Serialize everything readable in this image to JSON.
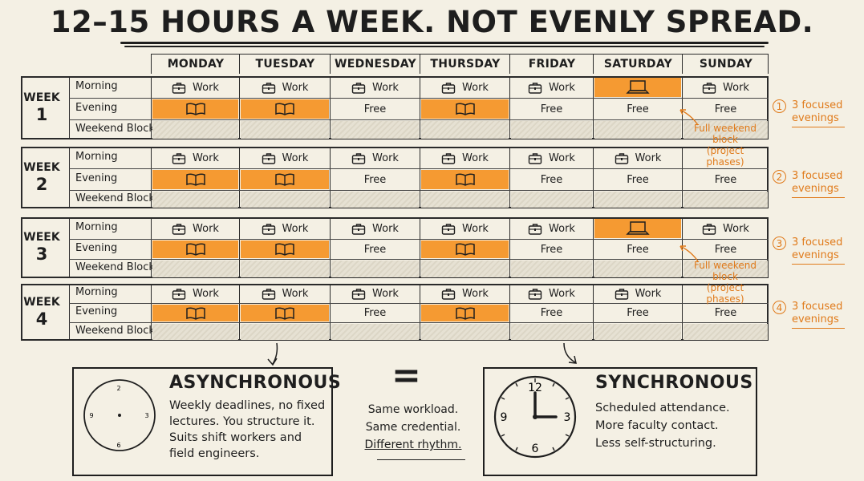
{
  "title": "12–15 HOURS A WEEK. NOT EVENLY SPREAD.",
  "days": [
    "MONDAY",
    "TUESDAY",
    "WEDNESDAY",
    "THURSDAY",
    "FRIDAY",
    "SATURDAY",
    "SUNDAY"
  ],
  "row_labels": [
    "Morning",
    "Evening",
    "Weekend Block"
  ],
  "week_word": "WEEK",
  "weeks": [
    {
      "number": "1",
      "morning": [
        {
          "icon": "briefcase",
          "text": "Work"
        },
        {
          "icon": "briefcase",
          "text": "Work"
        },
        {
          "icon": "briefcase",
          "text": "Work"
        },
        {
          "icon": "briefcase",
          "text": "Work"
        },
        {
          "icon": "briefcase",
          "text": "Work"
        },
        {
          "icon": "laptop",
          "text": "",
          "hl": true
        },
        {
          "icon": "briefcase",
          "text": "Work"
        }
      ],
      "evening": [
        {
          "icon": "book",
          "text": "",
          "hl": true
        },
        {
          "icon": "book",
          "text": "",
          "hl": true
        },
        {
          "text": "Free"
        },
        {
          "icon": "book",
          "text": "",
          "hl": true
        },
        {
          "text": "Free"
        },
        {
          "text": "Free"
        },
        {
          "text": "Free"
        }
      ]
    },
    {
      "number": "2",
      "morning": [
        {
          "icon": "briefcase",
          "text": "Work"
        },
        {
          "icon": "briefcase",
          "text": "Work"
        },
        {
          "icon": "briefcase",
          "text": "Work"
        },
        {
          "icon": "briefcase",
          "text": "Work"
        },
        {
          "icon": "briefcase",
          "text": "Work"
        },
        {
          "icon": "briefcase",
          "text": "Work"
        },
        {
          "text": ""
        }
      ],
      "evening": [
        {
          "icon": "book",
          "text": "",
          "hl": true
        },
        {
          "icon": "book",
          "text": "",
          "hl": true
        },
        {
          "text": "Free"
        },
        {
          "icon": "book",
          "text": "",
          "hl": true
        },
        {
          "text": "Free"
        },
        {
          "text": "Free"
        },
        {
          "text": "Free"
        }
      ]
    },
    {
      "number": "3",
      "morning": [
        {
          "icon": "briefcase",
          "text": "Work"
        },
        {
          "icon": "briefcase",
          "text": "Work"
        },
        {
          "icon": "briefcase",
          "text": "Work"
        },
        {
          "icon": "briefcase",
          "text": "Work"
        },
        {
          "icon": "briefcase",
          "text": "Work"
        },
        {
          "icon": "laptop",
          "text": "",
          "hl": true
        },
        {
          "icon": "briefcase",
          "text": "Work"
        }
      ],
      "evening": [
        {
          "icon": "book",
          "text": "",
          "hl": true
        },
        {
          "icon": "book",
          "text": "",
          "hl": true
        },
        {
          "text": "Free"
        },
        {
          "icon": "book",
          "text": "",
          "hl": true
        },
        {
          "text": "Free"
        },
        {
          "text": "Free"
        },
        {
          "text": "Free"
        }
      ]
    },
    {
      "number": "4",
      "morning": [
        {
          "icon": "briefcase",
          "text": "Work"
        },
        {
          "icon": "briefcase",
          "text": "Work"
        },
        {
          "icon": "briefcase",
          "text": "Work"
        },
        {
          "icon": "briefcase",
          "text": "Work"
        },
        {
          "icon": "briefcase",
          "text": "Work"
        },
        {
          "icon": "briefcase",
          "text": "Work"
        },
        {
          "text": ""
        }
      ],
      "evening": [
        {
          "icon": "book",
          "text": "",
          "hl": true
        },
        {
          "icon": "book",
          "text": "",
          "hl": true
        },
        {
          "text": "Free"
        },
        {
          "icon": "book",
          "text": "",
          "hl": true
        },
        {
          "text": "Free"
        },
        {
          "text": "Free"
        },
        {
          "text": "Free"
        }
      ]
    }
  ],
  "weekend_annotation": [
    "Full weekend",
    "block",
    "(project phases)"
  ],
  "side_notes": [
    {
      "number": "1",
      "text": [
        "3 focused",
        "evenings"
      ]
    },
    {
      "number": "2",
      "text": [
        "3 focused",
        "evenings"
      ]
    },
    {
      "number": "3",
      "text": [
        "3 focused",
        "evenings"
      ]
    },
    {
      "number": "4",
      "text": [
        "3 focused",
        "evenings"
      ]
    }
  ],
  "async": {
    "title": "ASYNCHRONOUS",
    "lines": [
      "Weekly deadlines, no fixed",
      "lectures. You structure it.",
      "Suits shift workers and",
      "field engineers."
    ],
    "clock_numbers": [
      "2",
      "3",
      "6",
      "9"
    ]
  },
  "sync": {
    "title": "SYNCHRONOUS",
    "lines": [
      "Scheduled attendance.",
      "More faculty contact.",
      "Less self-structuring."
    ],
    "clock_numbers": [
      "12",
      "3",
      "6",
      "9"
    ]
  },
  "equals": {
    "symbol": "=",
    "lines": [
      "Same workload.",
      "Same credential.",
      "Different rhythm."
    ]
  },
  "colors": {
    "orange": "#f59a32",
    "annotation": "#e07a1a",
    "ink": "#1e1e1e",
    "paper": "#f4f0e4"
  }
}
